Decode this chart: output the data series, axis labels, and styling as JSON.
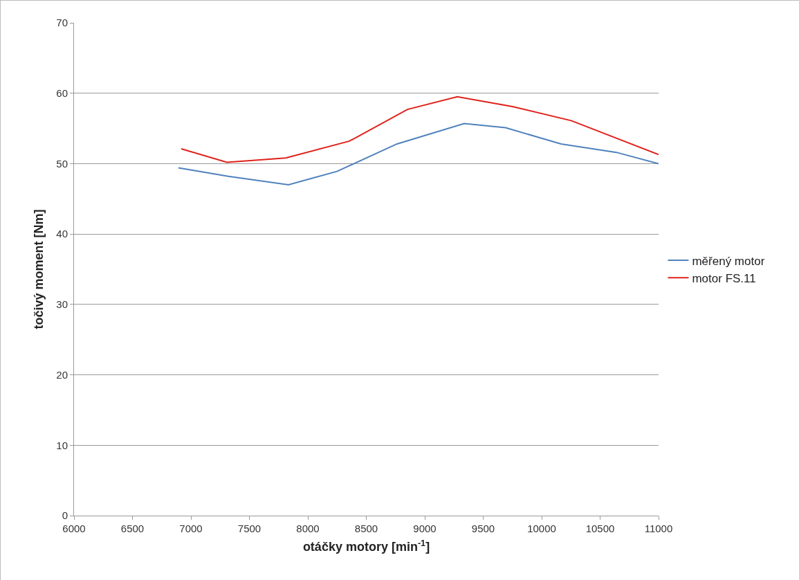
{
  "chart_data": {
    "type": "line",
    "xlabel": "otáčky motory [min$^{-1}$]",
    "ylabel": "točivý moment [Nm]",
    "xlim": [
      6000,
      11000
    ],
    "xticks": [
      6000,
      6500,
      7000,
      7500,
      8000,
      8500,
      9000,
      9500,
      10000,
      10500,
      11000
    ],
    "ylim": [
      0,
      70
    ],
    "yticks": [
      0,
      10,
      20,
      30,
      40,
      50,
      60,
      70
    ],
    "grid": "y",
    "legend": "right",
    "marker": "none",
    "line_style": "solid",
    "series": [
      {
        "name": "měřený motor",
        "color": "#4f81bd",
        "x": [
          6893,
          7320,
          7834,
          8249,
          8763,
          9337,
          9692,
          10166,
          10639,
          11000
        ],
        "values": [
          49.4,
          48.2,
          47.0,
          48.9,
          52.8,
          55.7,
          55.1,
          52.8,
          51.6,
          50.0
        ]
      },
      {
        "name": "motor FS.11",
        "color": "#e0201a",
        "x": [
          6917,
          7308,
          7811,
          8355,
          8479,
          8852,
          9278,
          9751,
          10254,
          11000
        ],
        "values": [
          52.1,
          50.2,
          50.8,
          53.2,
          54.3,
          57.7,
          59.5,
          58.1,
          56.1,
          51.3
        ]
      }
    ]
  }
}
